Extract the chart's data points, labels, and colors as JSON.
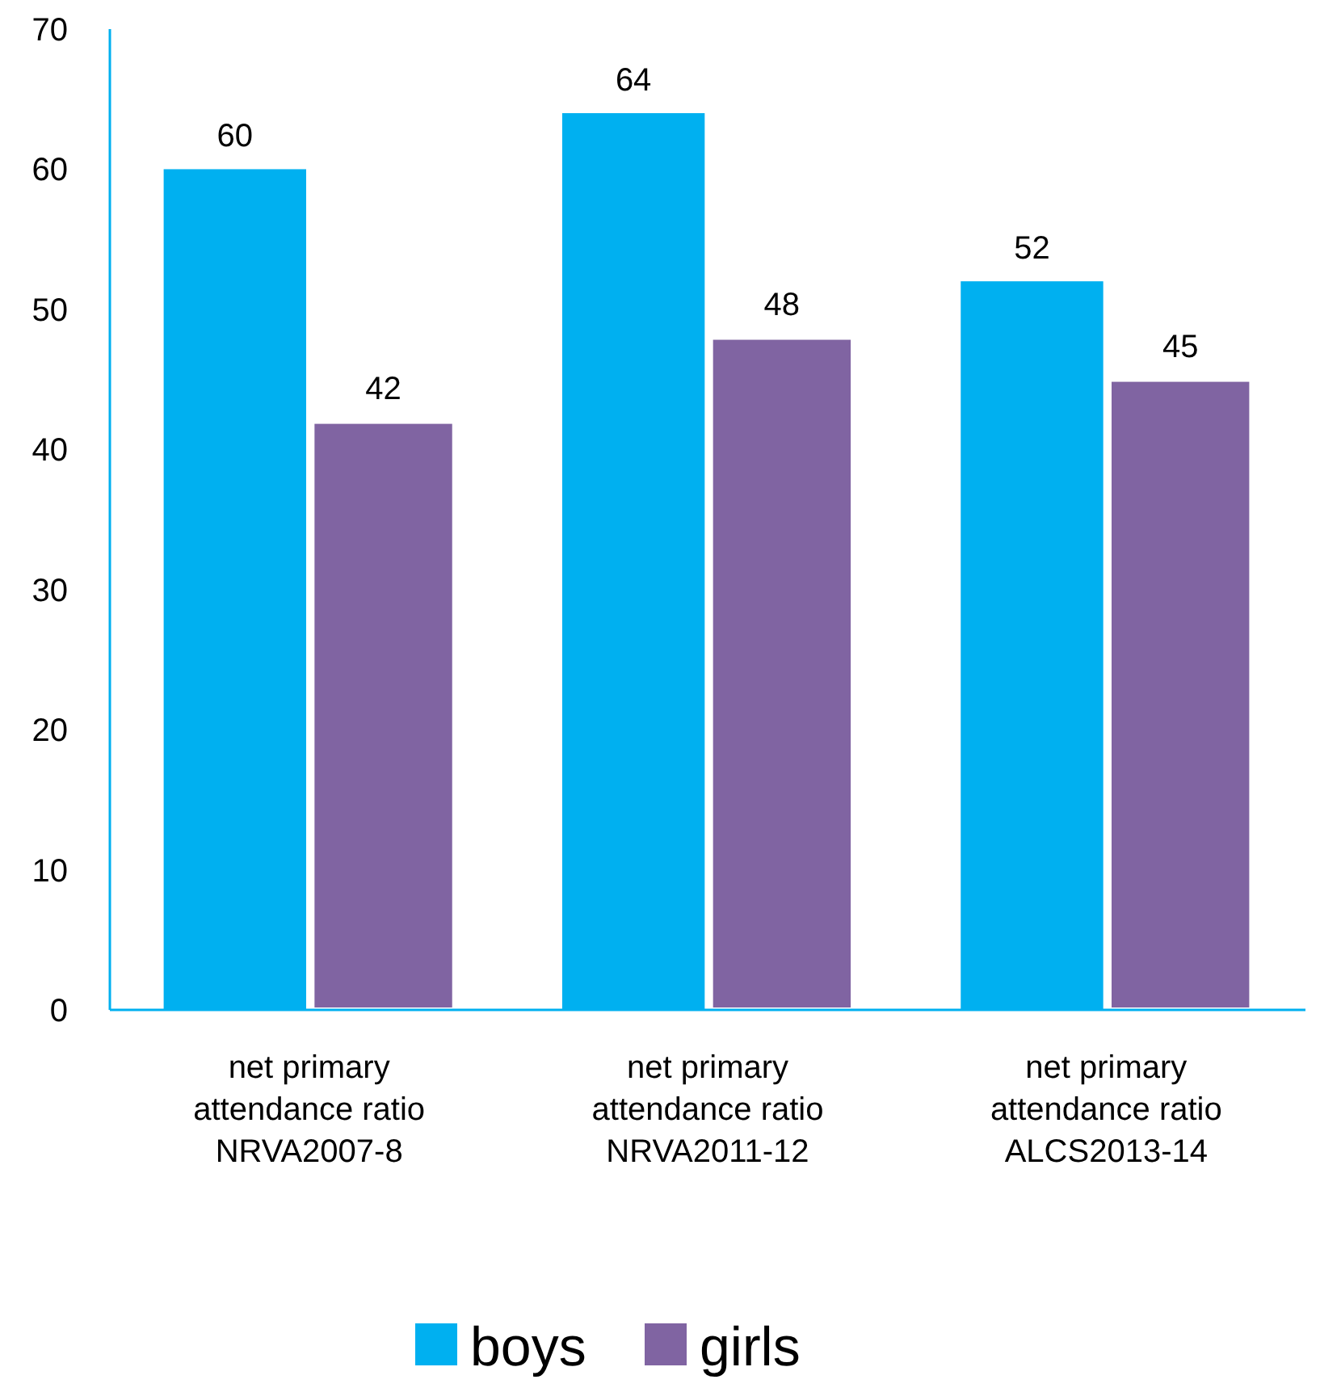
{
  "chart_data": {
    "type": "bar",
    "categories": [
      "net primary attendance ratio NRVA2007-8",
      "net primary attendance ratio NRVA2011-12",
      "net primary attendance ratio ALCS2013-14"
    ],
    "series": [
      {
        "name": "boys",
        "color": "#00b0f0",
        "values": [
          60,
          64,
          52
        ]
      },
      {
        "name": "girls",
        "color": "#8064a2",
        "values": [
          42,
          48,
          45
        ]
      }
    ],
    "ylim": [
      0,
      70
    ],
    "yticks": [
      0,
      10,
      20,
      30,
      40,
      50,
      60,
      70
    ],
    "data_labels": true,
    "grid": false,
    "legend": "bottom"
  }
}
